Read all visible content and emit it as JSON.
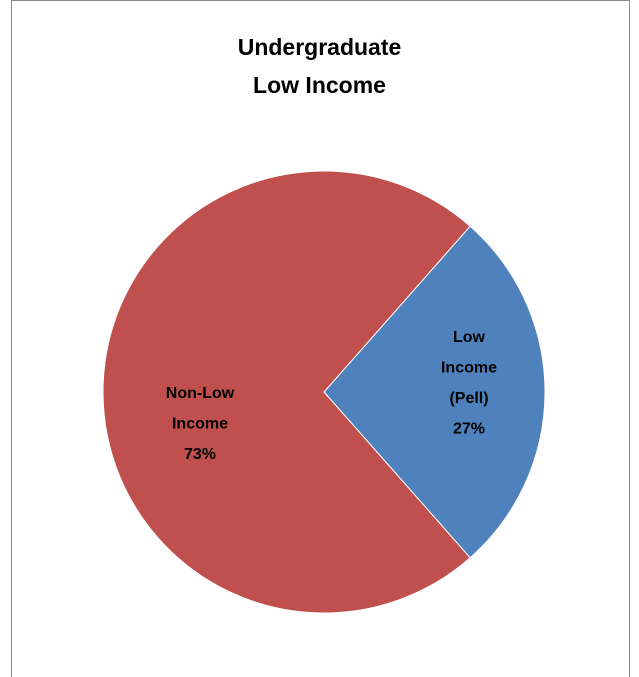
{
  "chart_data": {
    "type": "pie",
    "title_lines": [
      "Undergraduate",
      "Low Income"
    ],
    "slices": [
      {
        "label_lines": [
          "Low",
          "Income",
          "(Pell)",
          "27%"
        ],
        "value": 27,
        "color": "#4f81bd"
      },
      {
        "label_lines": [
          "Non-Low",
          "Income",
          "73%"
        ],
        "value": 73,
        "color": "#c0504d"
      }
    ],
    "legend": "none"
  }
}
